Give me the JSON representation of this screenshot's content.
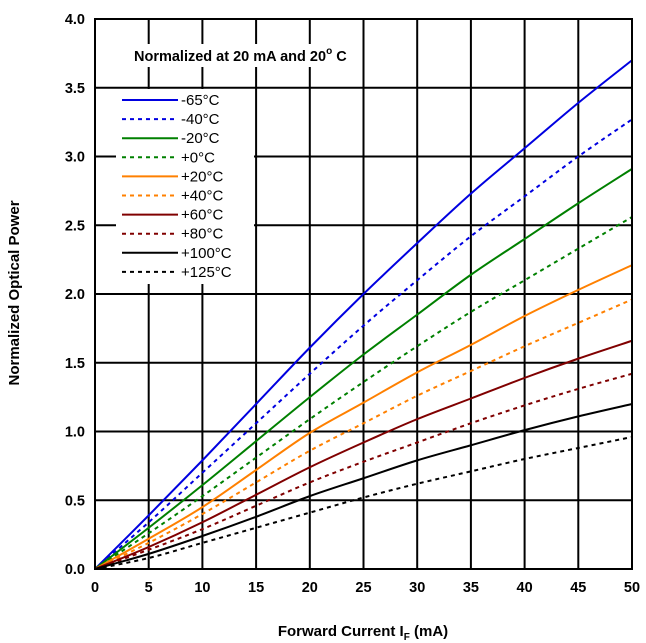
{
  "chart_data": {
    "type": "line",
    "title": "",
    "annotation": {
      "text": "Normalized at 20 mA and 20",
      "superscript": "o",
      "suffix": " C"
    },
    "xlabel": {
      "text": "Forward Current I",
      "subscript": "F",
      "suffix": " (mA)"
    },
    "ylabel": "Normalized Optical Power",
    "xlim": [
      0,
      50
    ],
    "ylim": [
      0,
      4.0
    ],
    "x_ticks": [
      "0",
      "5",
      "10",
      "15",
      "20",
      "25",
      "30",
      "35",
      "40",
      "45",
      "50"
    ],
    "y_ticks": [
      "0.0",
      "0.5",
      "1.0",
      "1.5",
      "2.0",
      "2.5",
      "3.0",
      "3.5",
      "4.0"
    ],
    "grid": true,
    "legend_position": "top-left",
    "x": [
      0,
      5,
      10,
      15,
      20,
      25,
      30,
      35,
      40,
      45,
      50
    ],
    "series": [
      {
        "name": "-65°C",
        "color": "#0000e0",
        "dashed": false,
        "values": [
          0,
          0.39,
          0.79,
          1.2,
          1.61,
          2.0,
          2.37,
          2.73,
          3.06,
          3.39,
          3.7
        ]
      },
      {
        "name": "-40°C",
        "color": "#0000e0",
        "dashed": true,
        "values": [
          0,
          0.34,
          0.7,
          1.06,
          1.42,
          1.77,
          2.1,
          2.42,
          2.71,
          3.0,
          3.27
        ]
      },
      {
        "name": "-20°C",
        "color": "#008000",
        "dashed": false,
        "values": [
          0,
          0.3,
          0.61,
          0.93,
          1.25,
          1.56,
          1.85,
          2.14,
          2.4,
          2.66,
          2.91
        ]
      },
      {
        "name": "+0°C",
        "color": "#008000",
        "dashed": true,
        "values": [
          0,
          0.26,
          0.53,
          0.81,
          1.09,
          1.36,
          1.62,
          1.87,
          2.1,
          2.33,
          2.56
        ]
      },
      {
        "name": "+20°C",
        "color": "#ff8000",
        "dashed": false,
        "values": [
          0,
          0.22,
          0.45,
          0.72,
          0.99,
          1.21,
          1.43,
          1.63,
          1.84,
          2.03,
          2.21
        ]
      },
      {
        "name": "+40°C",
        "color": "#ff8000",
        "dashed": true,
        "values": [
          0,
          0.19,
          0.4,
          0.63,
          0.86,
          1.06,
          1.26,
          1.44,
          1.62,
          1.79,
          1.96
        ]
      },
      {
        "name": "+60°C",
        "color": "#800000",
        "dashed": false,
        "values": [
          0,
          0.16,
          0.34,
          0.54,
          0.74,
          0.92,
          1.09,
          1.24,
          1.39,
          1.53,
          1.66
        ]
      },
      {
        "name": "+80°C",
        "color": "#800000",
        "dashed": true,
        "values": [
          0,
          0.14,
          0.29,
          0.46,
          0.63,
          0.78,
          0.92,
          1.06,
          1.19,
          1.31,
          1.42
        ]
      },
      {
        "name": "+100°C",
        "color": "#000000",
        "dashed": false,
        "values": [
          0,
          0.11,
          0.24,
          0.38,
          0.53,
          0.66,
          0.79,
          0.9,
          1.01,
          1.11,
          1.2
        ]
      },
      {
        "name": "+125°C",
        "color": "#000000",
        "dashed": true,
        "values": [
          0,
          0.08,
          0.19,
          0.3,
          0.41,
          0.52,
          0.62,
          0.71,
          0.8,
          0.88,
          0.96
        ]
      }
    ]
  }
}
